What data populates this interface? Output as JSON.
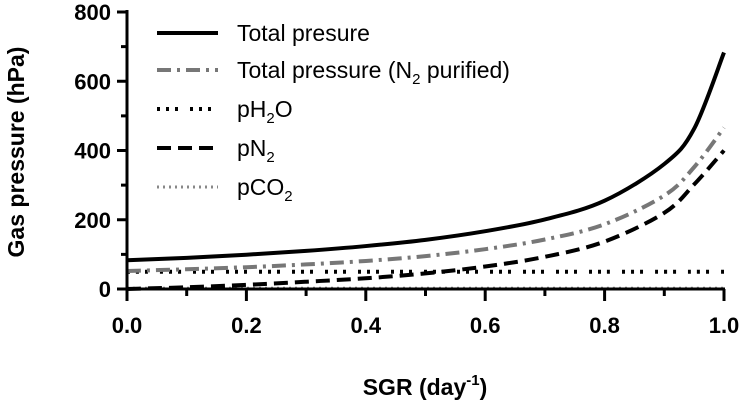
{
  "chart_data": {
    "type": "line",
    "title": "",
    "xlabel": "SGR (day",
    "xlabel_sup": "-1",
    "xlabel_close": ")",
    "ylabel": "Gas pressure (hPa)",
    "xlim": [
      0,
      1
    ],
    "ylim": [
      0,
      800
    ],
    "xticks": [
      0.0,
      0.2,
      0.4,
      0.6,
      0.8,
      1.0
    ],
    "xtick_labels": [
      "0.0",
      "0.2",
      "0.4",
      "0.6",
      "0.8",
      "1.0"
    ],
    "yticks": [
      0,
      200,
      400,
      600,
      800
    ],
    "ytick_labels": [
      "0",
      "200",
      "400",
      "600",
      "800"
    ],
    "legend_position": "top-left",
    "x": [
      0.0,
      0.1,
      0.2,
      0.3,
      0.4,
      0.5,
      0.6,
      0.7,
      0.8,
      0.9,
      0.95,
      1.0
    ],
    "series": [
      {
        "name": "Total presure",
        "label_parts": [
          "Total presure"
        ],
        "style": "solid",
        "color": "#000000",
        "values": [
          83,
          90,
          99,
          110,
          124,
          142,
          167,
          201,
          255,
          361,
          463,
          683
        ]
      },
      {
        "name": "Total pressure (N2 purified)",
        "label_parts": [
          "Total pressure (N",
          "2",
          " purified)"
        ],
        "style": "dashdot",
        "color": "#777777",
        "values": [
          52,
          57,
          63,
          71,
          81,
          95,
          115,
          143,
          187,
          270,
          352,
          466
        ]
      },
      {
        "name": "pH2O",
        "label_parts": [
          "pH",
          "2",
          "O"
        ],
        "style": "dashdotdot",
        "color": "#000000",
        "values": [
          50,
          50,
          50,
          50,
          50,
          50,
          50,
          50,
          50,
          50,
          50,
          50
        ]
      },
      {
        "name": "pN2",
        "label_parts": [
          "pN",
          "2",
          ""
        ],
        "style": "dashed",
        "color": "#000000",
        "values": [
          0,
          5,
          12,
          21,
          31,
          45,
          65,
          93,
          137,
          220,
          302,
          400
        ]
      },
      {
        "name": "pCO2",
        "label_parts": [
          "pCO",
          "2",
          ""
        ],
        "style": "dotted",
        "color": "#888888",
        "values": [
          2,
          2,
          2,
          2,
          2,
          2,
          2,
          2,
          2,
          2,
          2,
          2
        ]
      }
    ]
  }
}
